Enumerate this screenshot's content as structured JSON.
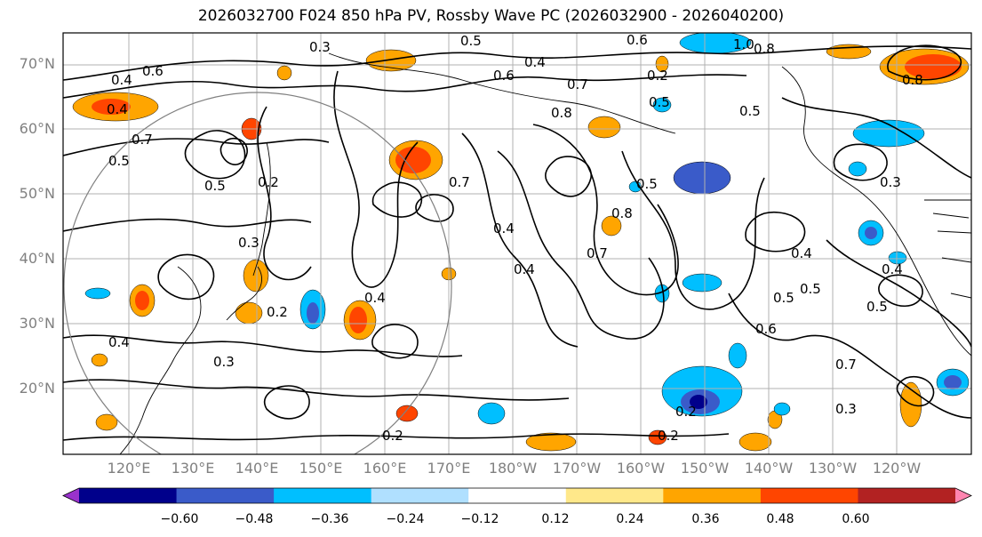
{
  "title": "2026032700 F024 850 hPa PV, Rossby Wave PC (2026032900 - 2026040200)",
  "lat_labels": [
    "70°N",
    "60°N",
    "50°N",
    "40°N",
    "30°N",
    "20°N"
  ],
  "lon_labels": [
    "120°E",
    "130°E",
    "140°E",
    "150°E",
    "160°E",
    "170°E",
    "180°W",
    "170°W",
    "160°W",
    "150°W",
    "140°W",
    "130°W",
    "120°W"
  ],
  "colorbar": {
    "ticks": [
      "−0.60",
      "−0.48",
      "−0.36",
      "−0.24",
      "−0.12",
      "0.12",
      "0.24",
      "0.36",
      "0.48",
      "0.60"
    ],
    "colors": [
      "#9932cc",
      "#00008b",
      "#3a5bc9",
      "#00bfff",
      "#b0e0ff",
      "#ffffff",
      "#ffe88a",
      "#ffa500",
      "#ff4500",
      "#b22222",
      "#ff85b0"
    ]
  },
  "contour_labels": [
    "0.5",
    "0.6",
    "1.0",
    "0.8",
    "0.3",
    "0.4",
    "0.7",
    "0.2",
    "0.6",
    "0.8",
    "0.5",
    "0.4",
    "0.7",
    "0.5",
    "0.4",
    "0.5",
    "0.3",
    "0.5",
    "0.3",
    "0.2",
    "0.4",
    "0.7",
    "0.5",
    "0.4",
    "0.8",
    "0.4",
    "0.3",
    "0.2",
    "0.7",
    "0.2",
    "0.2",
    "0.4",
    "0.5",
    "0.5",
    "0.4",
    "0.5",
    "0.3",
    "0.7",
    "0.2",
    "0.6",
    "0.8",
    "0.4",
    "0.6"
  ]
}
